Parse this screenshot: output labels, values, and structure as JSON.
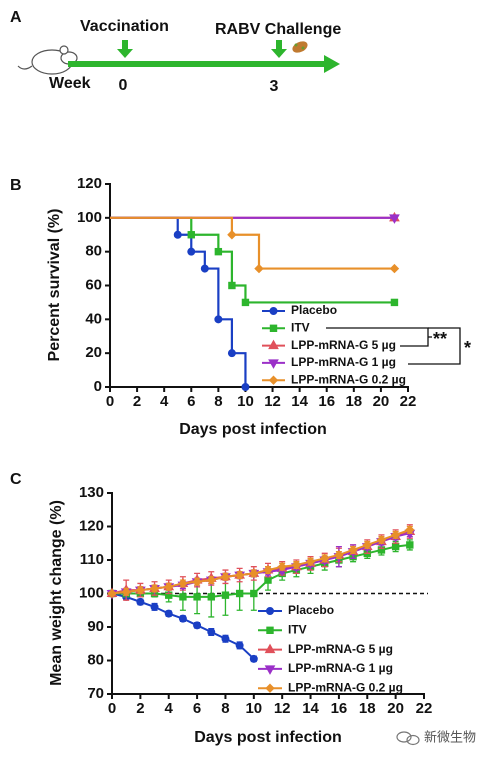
{
  "timeline": {
    "label": "A",
    "axis_label": "Week",
    "events": [
      {
        "name": "Vaccination",
        "week": "0"
      },
      {
        "name": "RABV Challenge",
        "week": "3"
      }
    ]
  },
  "watermark": "新微生物",
  "chart_data": [
    {
      "type": "step",
      "label": "B",
      "xlabel": "Days post infection",
      "ylabel": "Percent survival (%)",
      "xlim": [
        0,
        22
      ],
      "xticks": [
        0,
        2,
        4,
        6,
        8,
        10,
        12,
        14,
        16,
        18,
        20,
        22
      ],
      "ylim": [
        0,
        120
      ],
      "yticks": [
        0,
        20,
        40,
        60,
        80,
        100,
        120
      ],
      "legend": "lower right",
      "significance": [
        "**",
        "*"
      ],
      "series": [
        {
          "name": "Placebo",
          "color": "#1a3fc4",
          "marker": "circle",
          "x": [
            0,
            5,
            6,
            7,
            8,
            9,
            10
          ],
          "values": [
            100,
            90,
            80,
            70,
            40,
            20,
            0
          ]
        },
        {
          "name": "ITV",
          "color": "#2db52d",
          "marker": "square",
          "x": [
            0,
            6,
            8,
            9,
            10,
            21
          ],
          "values": [
            100,
            90,
            80,
            60,
            50,
            50
          ]
        },
        {
          "name": "LPP-mRNA-G 5 µg",
          "color": "#e0505a",
          "marker": "triangle-up",
          "x": [
            0,
            21
          ],
          "values": [
            100,
            100
          ]
        },
        {
          "name": "LPP-mRNA-G 1 µg",
          "color": "#9b30c8",
          "marker": "triangle-down",
          "x": [
            0,
            21
          ],
          "values": [
            100,
            100
          ]
        },
        {
          "name": "LPP-mRNA-G 0.2 µg",
          "color": "#e8902a",
          "marker": "diamond",
          "x": [
            0,
            9,
            11,
            21
          ],
          "values": [
            100,
            90,
            70,
            70
          ]
        }
      ]
    },
    {
      "type": "line",
      "label": "C",
      "xlabel": "Days post infection",
      "ylabel": "Mean weight change (%)",
      "xlim": [
        0,
        22
      ],
      "xticks": [
        0,
        2,
        4,
        6,
        8,
        10,
        12,
        14,
        16,
        18,
        20,
        22
      ],
      "ylim": [
        70,
        130
      ],
      "yticks": [
        70,
        80,
        90,
        100,
        110,
        120,
        130
      ],
      "hline": 100,
      "legend": "lower right",
      "x": [
        0,
        1,
        2,
        3,
        4,
        5,
        6,
        7,
        8,
        9,
        10,
        11,
        12,
        13,
        14,
        15,
        16,
        17,
        18,
        19,
        20,
        21
      ],
      "series": [
        {
          "name": "Placebo",
          "color": "#1a3fc4",
          "marker": "circle",
          "values": [
            100,
            99,
            97.5,
            96,
            94,
            92.5,
            90.5,
            88.5,
            86.5,
            84.5,
            80.5,
            null,
            null,
            null,
            null,
            null,
            null,
            null,
            null,
            null,
            null,
            null
          ],
          "errors": [
            0,
            0.8,
            0.8,
            1,
            0.8,
            0.8,
            0.8,
            1,
            1,
            1,
            0.8,
            null,
            null,
            null,
            null,
            null,
            null,
            null,
            null,
            null,
            null,
            null
          ]
        },
        {
          "name": "ITV",
          "color": "#2db52d",
          "marker": "square",
          "values": [
            100,
            100,
            100,
            100,
            99.5,
            99,
            99,
            99,
            99.5,
            100,
            100,
            104,
            106,
            107,
            108,
            109,
            110,
            111,
            112,
            113,
            114,
            114.5
          ],
          "errors": [
            0,
            1,
            1,
            1,
            2,
            4,
            5,
            6,
            6,
            5,
            5,
            3,
            2,
            2,
            2,
            2,
            2,
            1.5,
            1.5,
            1.5,
            1.5,
            1.5
          ]
        },
        {
          "name": "LPP-mRNA-G 5 µg",
          "color": "#e0505a",
          "marker": "triangle-up",
          "values": [
            100,
            101,
            101,
            101.5,
            102,
            103,
            104,
            104.5,
            105,
            105.5,
            106,
            107,
            107.5,
            108,
            109,
            110,
            111.5,
            112.5,
            114,
            115.5,
            117,
            118.5
          ],
          "errors": [
            0,
            3,
            2,
            2,
            2,
            2,
            2,
            2,
            2,
            2,
            2,
            2,
            2,
            2,
            2,
            2,
            2,
            2,
            2,
            2,
            2,
            2
          ]
        },
        {
          "name": "LPP-mRNA-G 1 µg",
          "color": "#9b30c8",
          "marker": "triangle-down",
          "values": [
            100,
            100.5,
            101,
            101.5,
            102,
            102.5,
            103.5,
            104,
            105,
            105.5,
            106,
            106.5,
            107,
            108,
            109,
            110,
            111,
            112.5,
            114,
            115.5,
            117,
            118
          ],
          "errors": [
            0,
            1,
            1,
            1,
            1,
            1,
            1,
            1,
            1,
            1,
            1,
            1,
            1,
            1,
            1,
            1,
            3,
            2,
            1,
            1,
            1,
            1
          ]
        },
        {
          "name": "LPP-mRNA-G 0.2 µg",
          "color": "#e8902a",
          "marker": "diamond",
          "values": [
            100,
            100.5,
            101,
            101.5,
            102,
            103,
            103.5,
            104,
            105,
            105.5,
            106,
            107,
            108,
            108.5,
            109.5,
            110.5,
            111.5,
            113,
            114.5,
            116,
            117.5,
            119
          ],
          "errors": [
            0,
            1,
            1,
            1,
            1,
            1,
            1,
            1,
            1,
            1,
            1,
            1,
            1,
            1,
            1,
            1,
            1,
            1,
            1,
            1,
            1,
            1
          ]
        }
      ]
    }
  ]
}
